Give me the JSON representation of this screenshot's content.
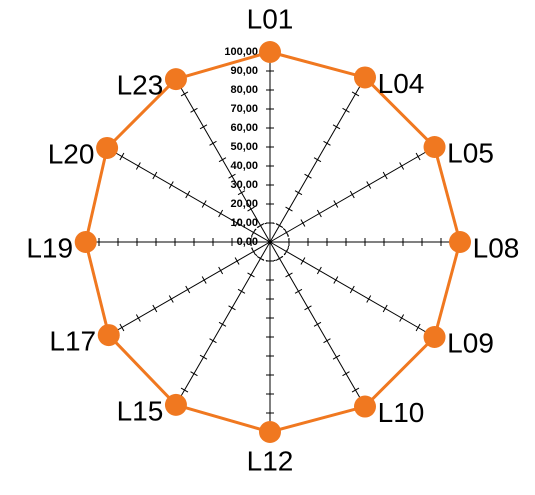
{
  "chart_data": {
    "type": "radar",
    "categories": [
      "L01",
      "L04",
      "L05",
      "L08",
      "L09",
      "L10",
      "L12",
      "L15",
      "L17",
      "L19",
      "L20",
      "L23"
    ],
    "series": [
      {
        "color": "#f07820",
        "values": [
          100,
          100,
          100,
          100,
          100,
          100,
          100,
          99,
          98,
          97,
          99,
          99
        ]
      }
    ],
    "ylim": [
      0,
      100
    ],
    "yticks": [
      {
        "value": 0,
        "label": "0,00"
      },
      {
        "value": 10,
        "label": "10,00"
      },
      {
        "value": 20,
        "label": "20,00"
      },
      {
        "value": 30,
        "label": "30,00"
      },
      {
        "value": 40,
        "label": "40,00"
      },
      {
        "value": 50,
        "label": "50,00"
      },
      {
        "value": 60,
        "label": "60,00"
      },
      {
        "value": 70,
        "label": "70,00"
      },
      {
        "value": 80,
        "label": "80,00"
      },
      {
        "value": 90,
        "label": "90,00"
      },
      {
        "value": 100,
        "label": "100,00"
      }
    ]
  }
}
